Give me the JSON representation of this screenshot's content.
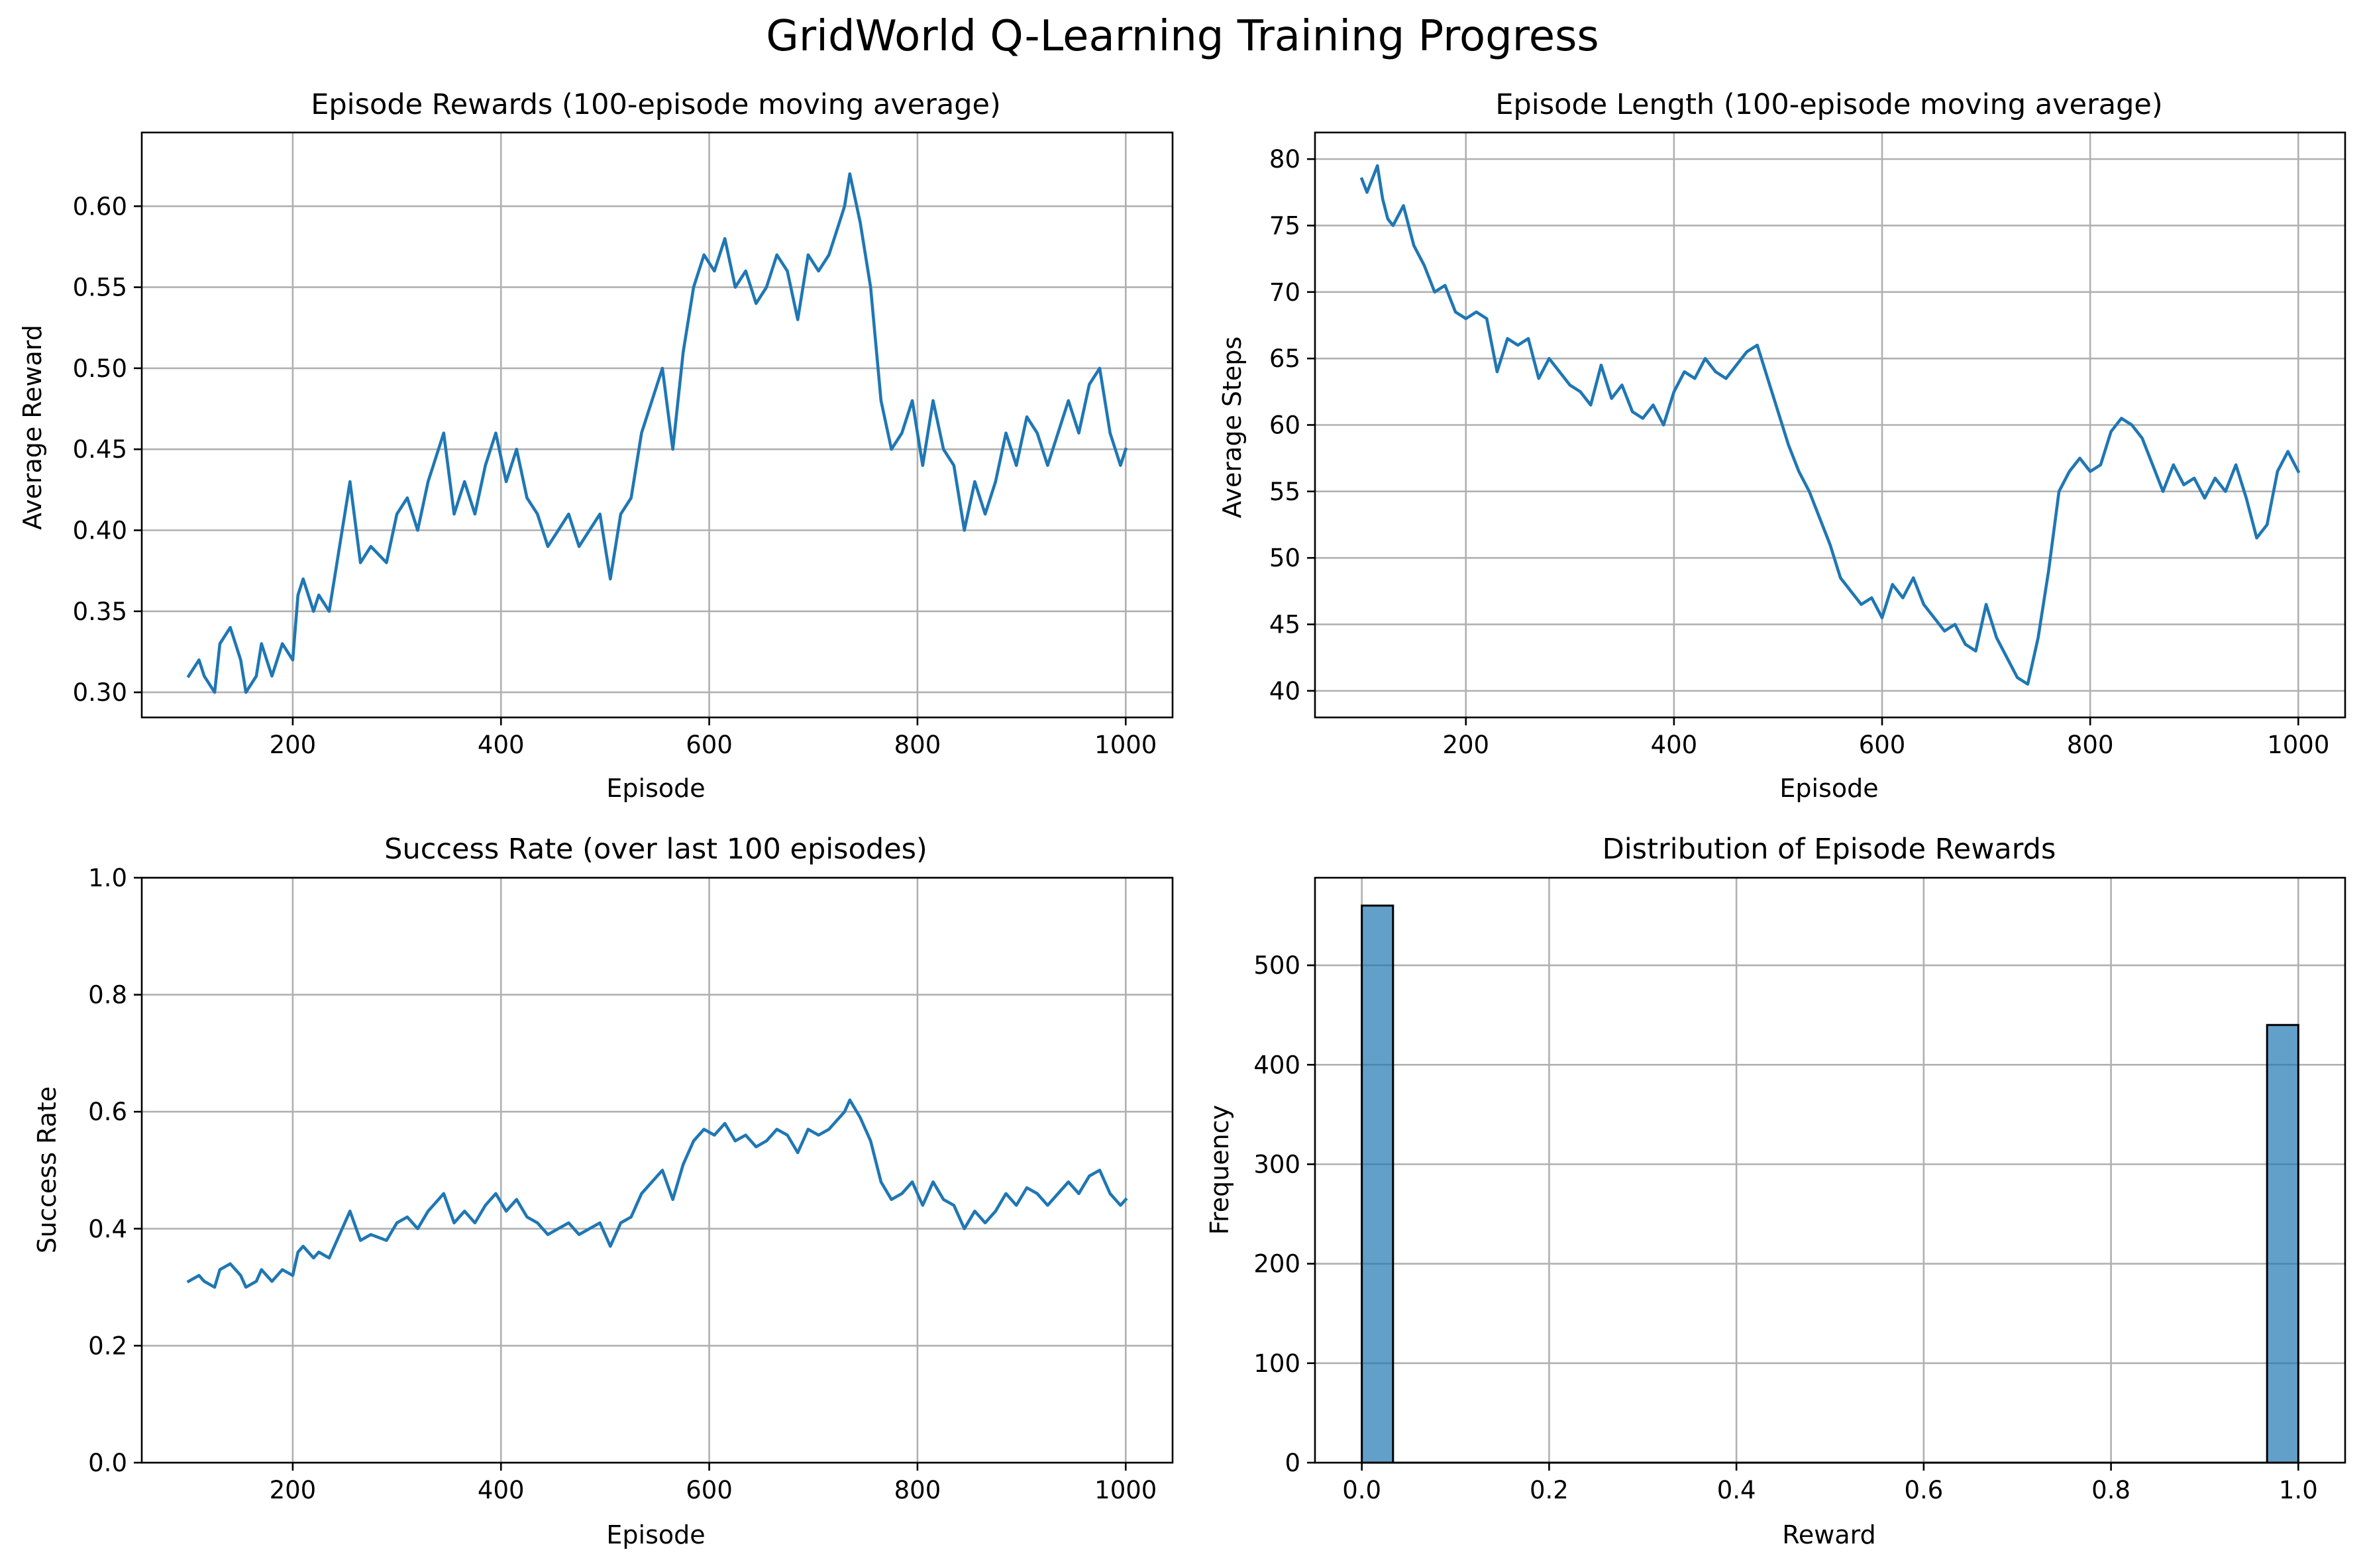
{
  "suptitle": "GridWorld Q-Learning Training Progress",
  "colors": {
    "line": "#1f77b4",
    "bar": "#1f77b4",
    "grid": "#b0b0b0",
    "edge": "#000000"
  },
  "chart_data": [
    {
      "type": "line",
      "title": "Episode Rewards (100-episode moving average)",
      "xlabel": "Episode",
      "ylabel": "Average Reward",
      "xlim": [
        55,
        1045
      ],
      "ylim": [
        0.2845,
        0.6455
      ],
      "xticks": [
        200,
        400,
        600,
        800,
        1000
      ],
      "yticks": [
        0.3,
        0.35,
        0.4,
        0.45,
        0.5,
        0.55,
        0.6
      ],
      "grid": true,
      "x": [
        100,
        110,
        115,
        125,
        130,
        140,
        150,
        155,
        165,
        170,
        180,
        190,
        200,
        205,
        210,
        220,
        225,
        235,
        245,
        255,
        265,
        275,
        290,
        300,
        310,
        320,
        330,
        335,
        345,
        355,
        365,
        375,
        385,
        395,
        405,
        415,
        425,
        435,
        445,
        455,
        465,
        475,
        485,
        495,
        505,
        515,
        525,
        535,
        545,
        555,
        565,
        575,
        585,
        595,
        605,
        615,
        625,
        635,
        645,
        655,
        665,
        675,
        685,
        695,
        705,
        715,
        725,
        730,
        735,
        745,
        755,
        765,
        775,
        785,
        795,
        805,
        815,
        825,
        835,
        845,
        855,
        865,
        875,
        885,
        895,
        905,
        915,
        925,
        935,
        945,
        955,
        965,
        975,
        985,
        995,
        1000
      ],
      "series": [
        {
          "values": [
            0.31,
            0.32,
            0.31,
            0.3,
            0.33,
            0.34,
            0.32,
            0.3,
            0.31,
            0.33,
            0.31,
            0.33,
            0.32,
            0.36,
            0.37,
            0.35,
            0.36,
            0.35,
            0.39,
            0.43,
            0.38,
            0.39,
            0.38,
            0.41,
            0.42,
            0.4,
            0.43,
            0.44,
            0.46,
            0.41,
            0.43,
            0.41,
            0.44,
            0.46,
            0.43,
            0.45,
            0.42,
            0.41,
            0.39,
            0.4,
            0.41,
            0.39,
            0.4,
            0.41,
            0.37,
            0.41,
            0.42,
            0.46,
            0.48,
            0.5,
            0.45,
            0.51,
            0.55,
            0.57,
            0.56,
            0.58,
            0.55,
            0.56,
            0.54,
            0.55,
            0.57,
            0.56,
            0.53,
            0.57,
            0.56,
            0.57,
            0.59,
            0.6,
            0.62,
            0.59,
            0.55,
            0.48,
            0.45,
            0.46,
            0.48,
            0.44,
            0.48,
            0.45,
            0.44,
            0.4,
            0.43,
            0.41,
            0.43,
            0.46,
            0.44,
            0.47,
            0.46,
            0.44,
            0.46,
            0.48,
            0.46,
            0.49,
            0.5,
            0.46,
            0.44,
            0.45
          ]
        }
      ]
    },
    {
      "type": "line",
      "title": "Episode Length (100-episode moving average)",
      "xlabel": "Episode",
      "ylabel": "Average Steps",
      "xlim": [
        55,
        1045
      ],
      "ylim": [
        38,
        82
      ],
      "xticks": [
        200,
        400,
        600,
        800,
        1000
      ],
      "yticks": [
        40,
        45,
        50,
        55,
        60,
        65,
        70,
        75,
        80
      ],
      "grid": true,
      "x": [
        100,
        105,
        110,
        115,
        120,
        125,
        130,
        140,
        150,
        160,
        170,
        180,
        190,
        200,
        210,
        220,
        230,
        240,
        250,
        260,
        270,
        280,
        290,
        300,
        310,
        320,
        330,
        340,
        350,
        360,
        370,
        380,
        390,
        400,
        410,
        420,
        430,
        440,
        450,
        460,
        470,
        480,
        490,
        500,
        510,
        520,
        530,
        540,
        550,
        560,
        570,
        580,
        590,
        600,
        610,
        620,
        630,
        640,
        650,
        660,
        670,
        680,
        690,
        700,
        710,
        720,
        730,
        740,
        750,
        760,
        770,
        780,
        790,
        800,
        810,
        820,
        830,
        840,
        850,
        860,
        870,
        880,
        890,
        900,
        910,
        920,
        930,
        940,
        950,
        960,
        970,
        980,
        990,
        1000
      ],
      "series": [
        {
          "values": [
            78.5,
            77.5,
            78.5,
            79.5,
            77.0,
            75.5,
            75.0,
            76.5,
            73.5,
            72.0,
            70.0,
            70.5,
            68.5,
            68.0,
            68.5,
            68.0,
            64.0,
            66.5,
            66.0,
            66.5,
            63.5,
            65.0,
            64.0,
            63.0,
            62.5,
            61.5,
            64.5,
            62.0,
            63.0,
            61.0,
            60.5,
            61.5,
            60.0,
            62.5,
            64.0,
            63.5,
            65.0,
            64.0,
            63.5,
            64.5,
            65.5,
            66.0,
            63.5,
            61.0,
            58.5,
            56.5,
            55.0,
            53.0,
            51.0,
            48.5,
            47.5,
            46.5,
            47.0,
            45.5,
            48.0,
            47.0,
            48.5,
            46.5,
            45.5,
            44.5,
            45.0,
            43.5,
            43.0,
            46.5,
            44.0,
            42.5,
            41.0,
            40.5,
            44.0,
            49.0,
            55.0,
            56.5,
            57.5,
            56.5,
            57.0,
            59.5,
            60.5,
            60.0,
            59.0,
            57.0,
            55.0,
            57.0,
            55.5,
            56.0,
            54.5,
            56.0,
            55.0,
            57.0,
            54.5,
            51.5,
            52.5,
            56.5,
            58.0,
            56.5
          ]
        }
      ]
    },
    {
      "type": "line",
      "title": "Success Rate (over last 100 episodes)",
      "xlabel": "Episode",
      "ylabel": "Success Rate",
      "xlim": [
        55,
        1045
      ],
      "ylim": [
        0.0,
        1.0
      ],
      "xticks": [
        200,
        400,
        600,
        800,
        1000
      ],
      "yticks": [
        0.0,
        0.2,
        0.4,
        0.6,
        0.8,
        1.0
      ],
      "grid": true,
      "x": [
        100,
        110,
        115,
        125,
        130,
        140,
        150,
        155,
        165,
        170,
        180,
        190,
        200,
        205,
        210,
        220,
        225,
        235,
        245,
        255,
        265,
        275,
        290,
        300,
        310,
        320,
        330,
        335,
        345,
        355,
        365,
        375,
        385,
        395,
        405,
        415,
        425,
        435,
        445,
        455,
        465,
        475,
        485,
        495,
        505,
        515,
        525,
        535,
        545,
        555,
        565,
        575,
        585,
        595,
        605,
        615,
        625,
        635,
        645,
        655,
        665,
        675,
        685,
        695,
        705,
        715,
        725,
        730,
        735,
        745,
        755,
        765,
        775,
        785,
        795,
        805,
        815,
        825,
        835,
        845,
        855,
        865,
        875,
        885,
        895,
        905,
        915,
        925,
        935,
        945,
        955,
        965,
        975,
        985,
        995,
        1000
      ],
      "series": [
        {
          "values": [
            0.31,
            0.32,
            0.31,
            0.3,
            0.33,
            0.34,
            0.32,
            0.3,
            0.31,
            0.33,
            0.31,
            0.33,
            0.32,
            0.36,
            0.37,
            0.35,
            0.36,
            0.35,
            0.39,
            0.43,
            0.38,
            0.39,
            0.38,
            0.41,
            0.42,
            0.4,
            0.43,
            0.44,
            0.46,
            0.41,
            0.43,
            0.41,
            0.44,
            0.46,
            0.43,
            0.45,
            0.42,
            0.41,
            0.39,
            0.4,
            0.41,
            0.39,
            0.4,
            0.41,
            0.37,
            0.41,
            0.42,
            0.46,
            0.48,
            0.5,
            0.45,
            0.51,
            0.55,
            0.57,
            0.56,
            0.58,
            0.55,
            0.56,
            0.54,
            0.55,
            0.57,
            0.56,
            0.53,
            0.57,
            0.56,
            0.57,
            0.59,
            0.6,
            0.62,
            0.59,
            0.55,
            0.48,
            0.45,
            0.46,
            0.48,
            0.44,
            0.48,
            0.45,
            0.44,
            0.4,
            0.43,
            0.41,
            0.43,
            0.46,
            0.44,
            0.47,
            0.46,
            0.44,
            0.46,
            0.48,
            0.46,
            0.49,
            0.5,
            0.46,
            0.44,
            0.45
          ]
        }
      ]
    },
    {
      "type": "bar",
      "title": "Distribution of Episode Rewards",
      "xlabel": "Reward",
      "ylabel": "Frequency",
      "xlim": [
        -0.05,
        1.05
      ],
      "ylim": [
        0,
        588
      ],
      "xticks": [
        0.0,
        0.2,
        0.4,
        0.6,
        0.8,
        1.0
      ],
      "yticks": [
        0,
        100,
        200,
        300,
        400,
        500
      ],
      "grid": true,
      "bins": 30,
      "bin_range": [
        0.0,
        1.0
      ],
      "counts_nonzero": [
        {
          "bin": 0,
          "count": 560
        },
        {
          "bin": 29,
          "count": 440
        }
      ]
    }
  ]
}
